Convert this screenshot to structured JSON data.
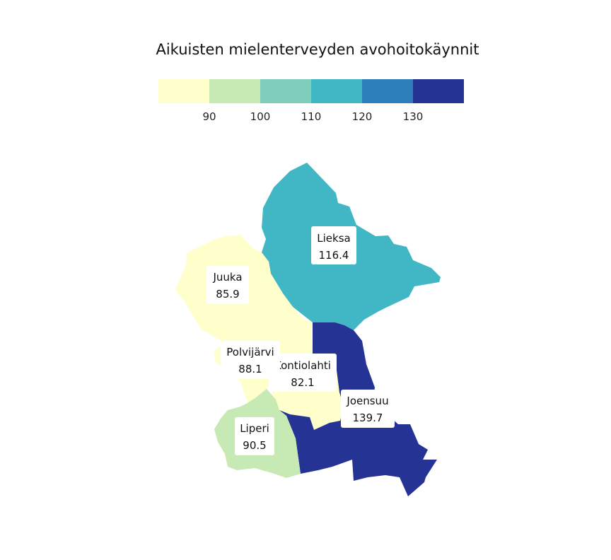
{
  "chart_data": {
    "type": "choropleth",
    "title": "Aikuisten mielenterveyden avohoitokäynnit",
    "legend": {
      "placement": "top",
      "thresholds": [
        90,
        100,
        110,
        120,
        130
      ],
      "tick_labels": [
        "90",
        "100",
        "110",
        "120",
        "130"
      ],
      "colors": [
        "#ffffcc",
        "#c7e9b4",
        "#7fcdbb",
        "#41b6c4",
        "#2c7fb8",
        "#253494"
      ]
    },
    "regions": [
      {
        "name": "Lieksa",
        "value": 116.4,
        "value_label": "116.4",
        "color": "#41b6c4"
      },
      {
        "name": "Juuka",
        "value": 85.9,
        "value_label": "85.9",
        "color": "#ffffcc"
      },
      {
        "name": "Polvijärvi",
        "value": 88.1,
        "value_label": "88.1",
        "color": "#ffffcc"
      },
      {
        "name": "Kontiolahti",
        "value": 82.1,
        "value_label": "82.1",
        "color": "#ffffcc"
      },
      {
        "name": "Joensuu",
        "value": 139.7,
        "value_label": "139.7",
        "color": "#253494"
      },
      {
        "name": "Liperi",
        "value": 90.5,
        "value_label": "90.5",
        "color": "#c7e9b4"
      }
    ]
  }
}
